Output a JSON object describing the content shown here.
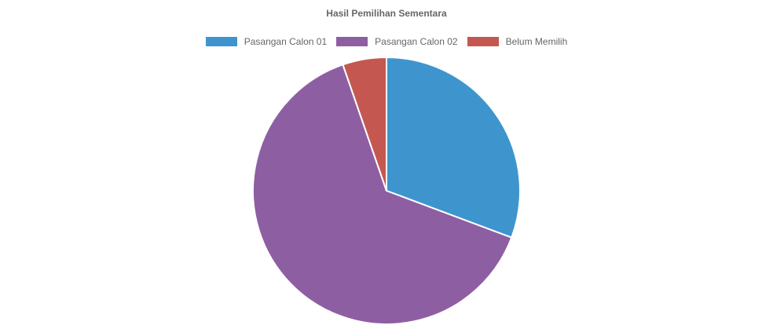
{
  "chart_data": {
    "type": "pie",
    "title": "Hasil Pemilihan Sementara",
    "categories": [
      "Pasangan Calon 01",
      "Pasangan Calon 02",
      "Belum Memilih"
    ],
    "values": [
      30.7,
      64.0,
      5.3
    ],
    "colors": [
      "#3e95cd",
      "#8e5ea2",
      "#c45850"
    ],
    "legend": "top",
    "border_color": "#ffffff"
  }
}
